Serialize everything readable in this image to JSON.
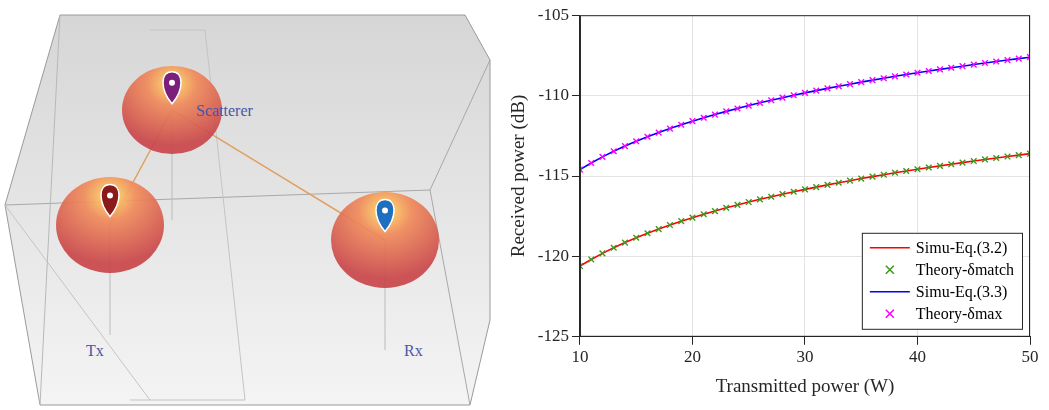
{
  "diagram": {
    "nodes": [
      {
        "label": "Scatterer"
      },
      {
        "label": "Tx"
      },
      {
        "label": "Rx"
      }
    ]
  },
  "chart_data": {
    "type": "line",
    "x_label": "Transmitted power (W)",
    "y_label": "Received power (dB)",
    "x": [
      10,
      11,
      12,
      13,
      14,
      15,
      16,
      17,
      18,
      19,
      20,
      21,
      22,
      23,
      24,
      25,
      26,
      27,
      28,
      29,
      30,
      31,
      32,
      33,
      34,
      35,
      36,
      37,
      38,
      39,
      40,
      41,
      42,
      43,
      44,
      45,
      46,
      47,
      48,
      49,
      50
    ],
    "xlim": [
      10,
      50
    ],
    "xticks": [
      10,
      20,
      30,
      40,
      50
    ],
    "ylim": [
      -125,
      -105
    ],
    "yticks": [
      -125,
      -120,
      -115,
      -110,
      -105
    ],
    "grid": true,
    "legend": "lower right",
    "series": [
      {
        "name": "Simu-Eq.(3.2)",
        "type": "line",
        "line_style": "solid",
        "color": "#ff0000",
        "values": [
          -120.6,
          -120.19,
          -119.81,
          -119.46,
          -119.14,
          -118.84,
          -118.56,
          -118.3,
          -118.05,
          -117.81,
          -117.59,
          -117.38,
          -117.18,
          -116.98,
          -116.8,
          -116.62,
          -116.45,
          -116.29,
          -116.13,
          -115.98,
          -115.83,
          -115.69,
          -115.55,
          -115.42,
          -115.29,
          -115.16,
          -115.04,
          -114.92,
          -114.8,
          -114.69,
          -114.58,
          -114.47,
          -114.37,
          -114.27,
          -114.17,
          -114.07,
          -113.97,
          -113.88,
          -113.79,
          -113.7,
          -113.61
        ]
      },
      {
        "name": "Theory-δmatch",
        "type": "scatter",
        "marker": "x",
        "color": "#3c9a1e",
        "values": [
          -120.6,
          -120.19,
          -119.81,
          -119.46,
          -119.14,
          -118.84,
          -118.56,
          -118.3,
          -118.05,
          -117.81,
          -117.59,
          -117.38,
          -117.18,
          -116.98,
          -116.8,
          -116.62,
          -116.45,
          -116.29,
          -116.13,
          -115.98,
          -115.83,
          -115.69,
          -115.55,
          -115.42,
          -115.29,
          -115.16,
          -115.04,
          -114.92,
          -114.8,
          -114.69,
          -114.58,
          -114.47,
          -114.37,
          -114.27,
          -114.17,
          -114.07,
          -113.97,
          -113.88,
          -113.79,
          -113.7,
          -113.61
        ]
      },
      {
        "name": "Simu-Eq.(3.3)",
        "type": "line",
        "line_style": "solid",
        "color": "#0000ff",
        "values": [
          -114.6,
          -114.19,
          -113.81,
          -113.46,
          -113.14,
          -112.84,
          -112.56,
          -112.3,
          -112.05,
          -111.81,
          -111.59,
          -111.38,
          -111.18,
          -110.98,
          -110.8,
          -110.62,
          -110.45,
          -110.29,
          -110.13,
          -109.98,
          -109.83,
          -109.69,
          -109.55,
          -109.42,
          -109.29,
          -109.16,
          -109.04,
          -108.92,
          -108.8,
          -108.69,
          -108.58,
          -108.47,
          -108.37,
          -108.27,
          -108.17,
          -108.07,
          -107.97,
          -107.88,
          -107.79,
          -107.7,
          -107.61
        ]
      },
      {
        "name": "Theory-δmax",
        "type": "scatter",
        "marker": "x",
        "color": "#ff00ff",
        "values": [
          -114.6,
          -114.19,
          -113.81,
          -113.46,
          -113.14,
          -112.84,
          -112.56,
          -112.3,
          -112.05,
          -111.81,
          -111.59,
          -111.38,
          -111.18,
          -110.98,
          -110.8,
          -110.62,
          -110.45,
          -110.29,
          -110.13,
          -109.98,
          -109.83,
          -109.69,
          -109.55,
          -109.42,
          -109.29,
          -109.16,
          -109.04,
          -108.92,
          -108.8,
          -108.69,
          -108.58,
          -108.47,
          -108.37,
          -108.27,
          -108.17,
          -108.07,
          -107.97,
          -107.88,
          -107.79,
          -107.7,
          -107.61
        ]
      }
    ]
  }
}
